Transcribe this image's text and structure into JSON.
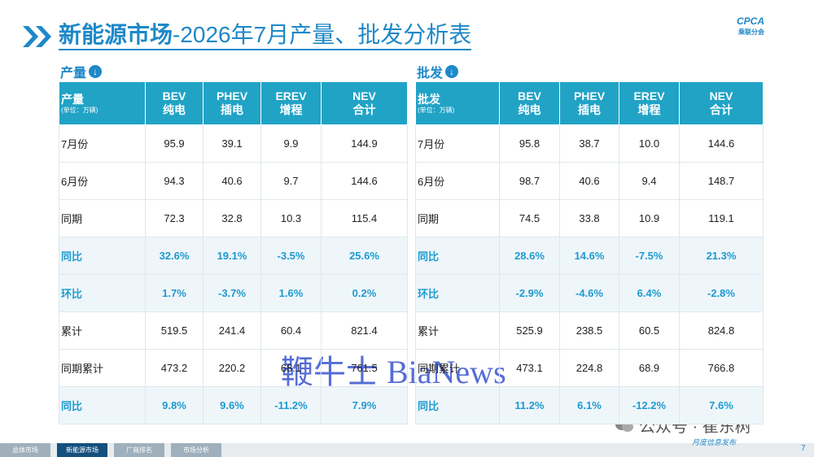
{
  "header": {
    "title_main": "新能源市场",
    "title_rest": "-2026年7月产量、批发分析表",
    "logo": "CPCA",
    "logo_sub": "乘联分会"
  },
  "tables": [
    {
      "label": "产量",
      "header": [
        "产量",
        "(单位：万辆)"
      ],
      "columns": [
        [
          "BEV",
          "纯电"
        ],
        [
          "PHEV",
          "插电"
        ],
        [
          "EREV",
          "增程"
        ],
        [
          "NEV",
          "合计"
        ]
      ],
      "rows": [
        [
          "7月份",
          "95.9",
          "39.1",
          "9.9",
          "144.9"
        ],
        [
          "6月份",
          "94.3",
          "40.6",
          "9.7",
          "144.6"
        ],
        [
          "同期",
          "72.3",
          "32.8",
          "10.3",
          "115.4"
        ],
        [
          "同比",
          "32.6%",
          "19.1%",
          "-3.5%",
          "25.6%"
        ],
        [
          "环比",
          "1.7%",
          "-3.7%",
          "1.6%",
          "0.2%"
        ],
        [
          "累计",
          "519.5",
          "241.4",
          "60.4",
          "821.4"
        ],
        [
          "同期累计",
          "473.2",
          "220.2",
          "68.1",
          "761.5"
        ],
        [
          "同比",
          "9.8%",
          "9.6%",
          "-11.2%",
          "7.9%"
        ]
      ],
      "highlight_rows": [
        3,
        4,
        7
      ]
    },
    {
      "label": "批发",
      "header": [
        "批发",
        "(单位：万辆)"
      ],
      "columns": [
        [
          "BEV",
          "纯电"
        ],
        [
          "PHEV",
          "插电"
        ],
        [
          "EREV",
          "增程"
        ],
        [
          "NEV",
          "合计"
        ]
      ],
      "rows": [
        [
          "7月份",
          "95.8",
          "38.7",
          "10.0",
          "144.6"
        ],
        [
          "6月份",
          "98.7",
          "40.6",
          "9.4",
          "148.7"
        ],
        [
          "同期",
          "74.5",
          "33.8",
          "10.9",
          "119.1"
        ],
        [
          "同比",
          "28.6%",
          "14.6%",
          "-7.5%",
          "21.3%"
        ],
        [
          "环比",
          "-2.9%",
          "-4.6%",
          "6.4%",
          "-2.8%"
        ],
        [
          "累计",
          "525.9",
          "238.5",
          "60.5",
          "824.8"
        ],
        [
          "同期累计",
          "473.1",
          "224.8",
          "68.9",
          "766.8"
        ],
        [
          "同比",
          "11.2%",
          "6.1%",
          "-12.2%",
          "7.6%"
        ]
      ],
      "highlight_rows": [
        3,
        4,
        7
      ]
    }
  ],
  "watermark": "鞭牛士 BiaNews",
  "wechat": "公众号 · 崔东树",
  "footer": {
    "tabs": [
      "总体市场",
      "新能源市场",
      "厂商排名",
      "市场分析"
    ],
    "active_tab": 1,
    "note": "月度信息发布",
    "page": "7"
  }
}
